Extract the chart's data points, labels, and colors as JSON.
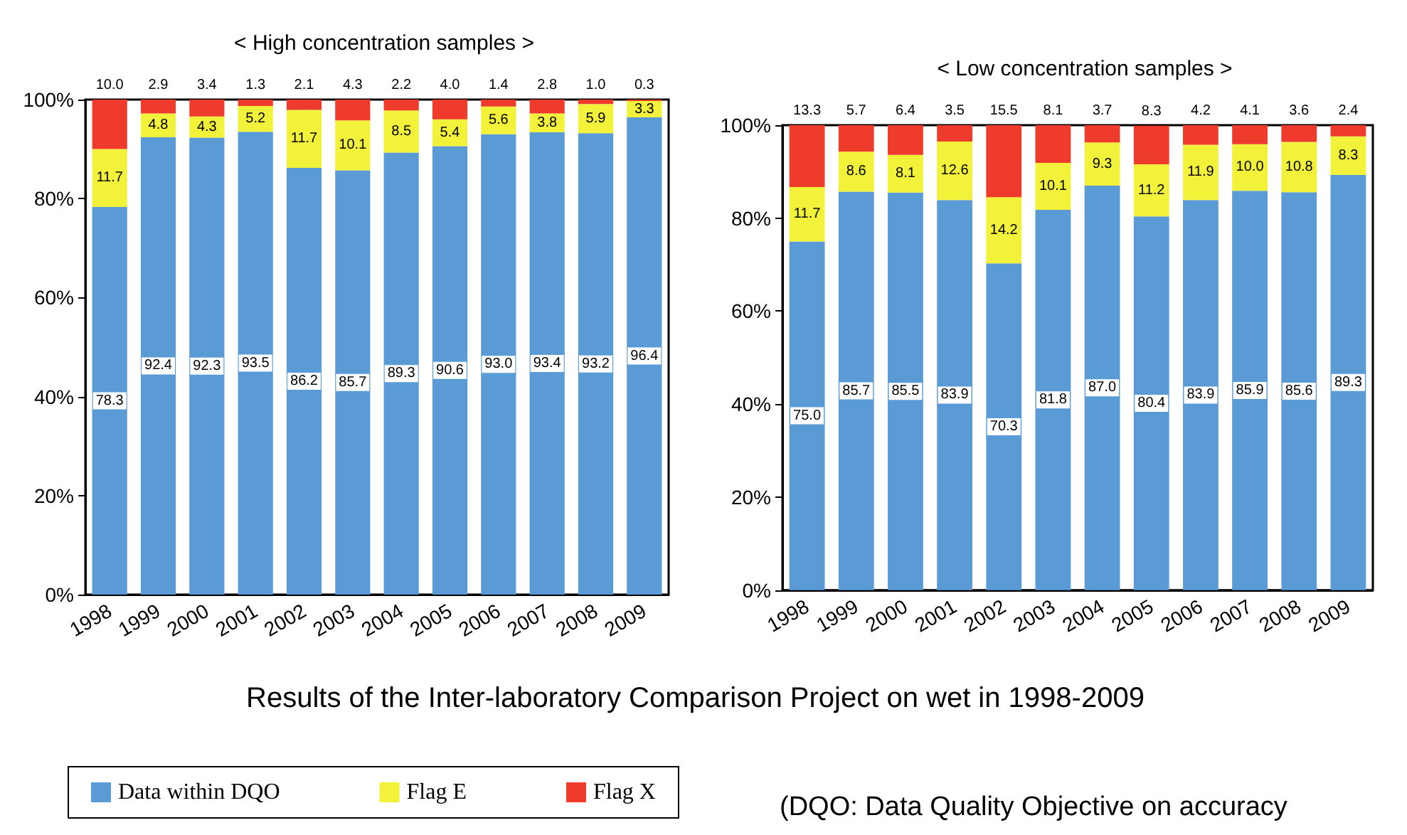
{
  "chart_data": [
    {
      "type": "bar",
      "title": "< High concentration samples >",
      "stacked": true,
      "grid": false,
      "legend": "bottom",
      "categories": [
        "1998",
        "1999",
        "2000",
        "2001",
        "2002",
        "2003",
        "2004",
        "2005",
        "2006",
        "2007",
        "2008",
        "2009"
      ],
      "ylim": [
        0,
        100
      ],
      "yticks": [
        {
          "value": 0,
          "label": "0%"
        },
        {
          "value": 20,
          "label": "20%"
        },
        {
          "value": 40,
          "label": "40%"
        },
        {
          "value": 60,
          "label": "60%"
        },
        {
          "value": 80,
          "label": "80%"
        },
        {
          "value": 100,
          "label": "100%"
        }
      ],
      "series": [
        {
          "name": "Data within DQO",
          "color": "#5b9bd5",
          "values": [
            78.3,
            92.4,
            92.3,
            93.5,
            86.2,
            85.7,
            89.3,
            90.6,
            93.0,
            93.4,
            93.2,
            96.4
          ],
          "value_labels": [
            "78.3",
            "92.4",
            "92.3",
            "93.5",
            "86.2",
            "85.7",
            "89.3",
            "90.6",
            "93.0",
            "93.4",
            "93.2",
            "96.4"
          ]
        },
        {
          "name": "Flag E",
          "color": "#f2f23a",
          "values": [
            11.7,
            4.8,
            4.3,
            5.2,
            11.7,
            10.1,
            8.5,
            5.4,
            5.6,
            3.8,
            5.9,
            3.3
          ],
          "value_labels": [
            "11.7",
            "4.8",
            "4.3",
            "5.2",
            "11.7",
            "10.1",
            "8.5",
            "5.4",
            "5.6",
            "3.8",
            "5.9",
            "3.3"
          ]
        },
        {
          "name": "Flag X",
          "color": "#ee3b2b",
          "values": [
            10.0,
            2.9,
            3.4,
            1.3,
            2.1,
            4.3,
            2.2,
            4.0,
            1.4,
            2.8,
            1.0,
            0.3
          ],
          "value_labels": [
            "10.0",
            "2.9",
            "3.4",
            "1.3",
            "2.1",
            "4.3",
            "2.2",
            "4.0",
            "1.4",
            "2.8",
            "1.0",
            "0.3"
          ]
        }
      ],
      "annotations": [
        "Results of the Inter-laboratory Comparison Project on wet in 1998-2009",
        "(DQO: Data Quality Objective on accuracy"
      ]
    },
    {
      "type": "bar",
      "title": "< Low concentration samples >",
      "stacked": true,
      "grid": false,
      "categories": [
        "1998",
        "1999",
        "2000",
        "2001",
        "2002",
        "2003",
        "2004",
        "2005",
        "2006",
        "2007",
        "2008",
        "2009"
      ],
      "ylim": [
        0,
        100
      ],
      "yticks": [
        {
          "value": 0,
          "label": "0%"
        },
        {
          "value": 20,
          "label": "20%"
        },
        {
          "value": 40,
          "label": "40%"
        },
        {
          "value": 60,
          "label": "60%"
        },
        {
          "value": 80,
          "label": "80%"
        },
        {
          "value": 100,
          "label": "100%"
        }
      ],
      "series": [
        {
          "color": "#5b9bd5",
          "values": [
            75.0,
            85.7,
            85.5,
            83.9,
            70.3,
            81.8,
            87.0,
            80.4,
            83.9,
            85.9,
            85.6,
            89.3
          ],
          "value_labels": [
            "75.0",
            "85.7",
            "85.5",
            "83.9",
            "70.3",
            "81.8",
            "87.0",
            "80.4",
            "83.9",
            "85.9",
            "85.6",
            "89.3"
          ]
        },
        {
          "color": "#f2f23a",
          "values": [
            11.7,
            8.6,
            8.1,
            12.6,
            14.2,
            10.1,
            9.3,
            11.2,
            11.9,
            10.0,
            10.8,
            8.3
          ],
          "value_labels": [
            "11.7",
            "8.6",
            "8.1",
            "12.6",
            "14.2",
            "10.1",
            "9.3",
            "11.2",
            "11.9",
            "10.0",
            "10.8",
            "8.3"
          ]
        },
        {
          "color": "#ee3b2b",
          "values": [
            13.3,
            5.7,
            6.4,
            3.5,
            15.5,
            8.1,
            3.7,
            8.3,
            4.2,
            4.1,
            3.6,
            2.4
          ],
          "value_labels": [
            "13.3",
            "5.7",
            "6.4",
            "3.5",
            "15.5",
            "8.1",
            "3.7",
            "8.3",
            "4.2",
            "4.1",
            "3.6",
            "2.4"
          ]
        }
      ]
    }
  ]
}
